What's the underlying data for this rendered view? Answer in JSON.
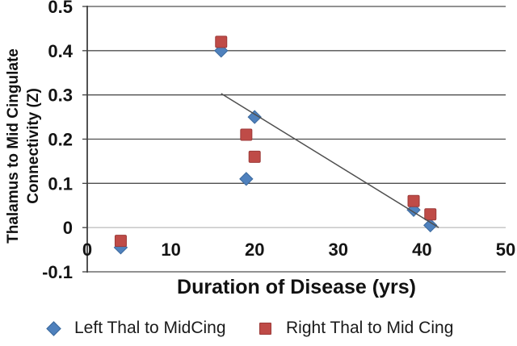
{
  "chart_data": {
    "type": "scatter",
    "title": "",
    "xlabel": "Duration of Disease (yrs)",
    "ylabel": "Thalamus to Mid Cingulate Connectivity (Z)",
    "ylabel_lines": [
      "Thalamus to Mid Cingulate",
      "Connectivity (Z)"
    ],
    "xlim": [
      0,
      50
    ],
    "ylim": [
      -0.1,
      0.5
    ],
    "xticks": [
      0,
      10,
      20,
      30,
      40,
      50
    ],
    "xtick_labels": [
      "0",
      "10",
      "20",
      "30",
      "40",
      "50"
    ],
    "yticks": [
      0.5,
      0.4,
      0.3,
      0.2,
      0.1,
      0,
      -0.1
    ],
    "ytick_labels": [
      "0.5",
      "0.4",
      "0.3",
      "0.2",
      "0.1",
      "0",
      "-0.1"
    ],
    "grid": "horizontal-only",
    "legend_position": "bottom",
    "series": [
      {
        "name": "Left Thal to MidCing",
        "marker": "diamond",
        "color": "#4f81bd",
        "edge_color": "#3a689c",
        "points": [
          [
            4,
            -0.045
          ],
          [
            16,
            0.4
          ],
          [
            19,
            0.11
          ],
          [
            20,
            0.25
          ],
          [
            39,
            0.04
          ],
          [
            41,
            0.005
          ]
        ]
      },
      {
        "name": "Right Thal to Mid Cing",
        "marker": "square",
        "color": "#bf4b47",
        "edge_color": "#9c3a38",
        "points": [
          [
            4,
            -0.03
          ],
          [
            16,
            0.42
          ],
          [
            19,
            0.21
          ],
          [
            20,
            0.16
          ],
          [
            39,
            0.06
          ],
          [
            41,
            0.03
          ]
        ]
      }
    ],
    "trendline": {
      "x1": 16,
      "y1": 0.303,
      "x2": 42,
      "y2": 0.0
    },
    "colors": {
      "gridline": "#4f4f4f",
      "zero_line": "#c2c2c2",
      "axis_line": "#3f3f3f",
      "trend_line": "#4f4f4f",
      "text": "#141414",
      "background": "#ffffff"
    }
  }
}
